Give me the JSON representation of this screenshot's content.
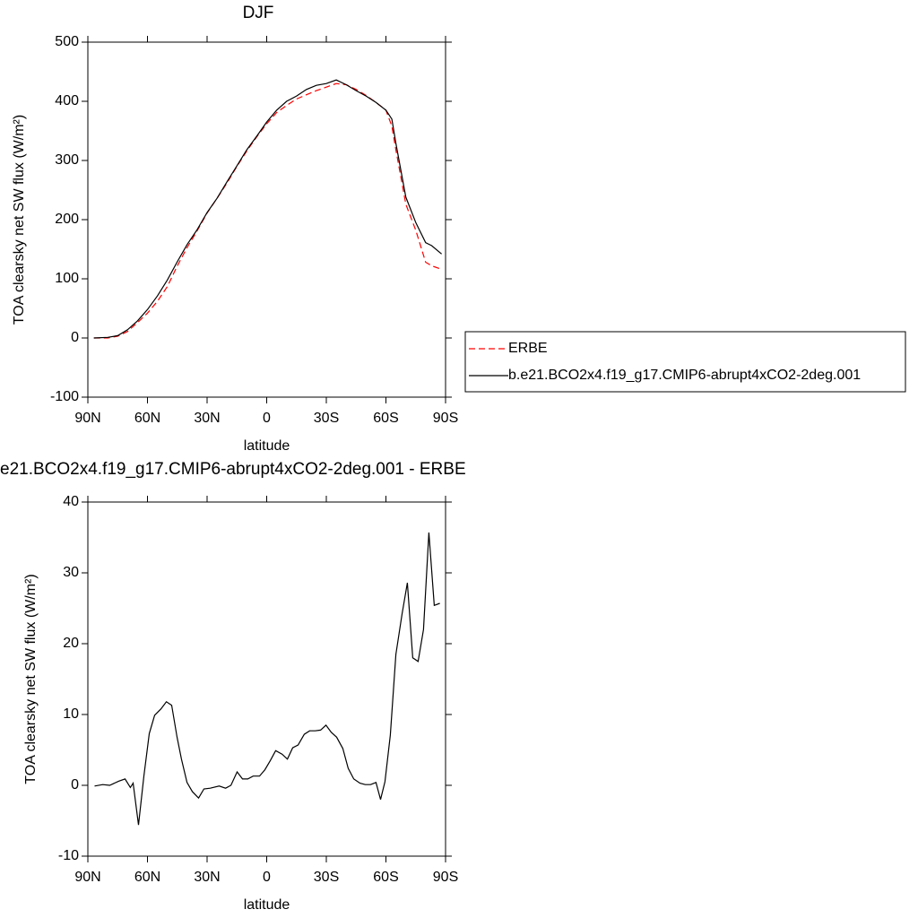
{
  "chart_data": [
    {
      "type": "line",
      "title": "DJF",
      "xlabel": "latitude",
      "ylabel": "TOA clearsky net SW flux (W/m²)",
      "x": [
        87,
        80,
        75,
        70,
        65,
        60,
        55,
        50,
        45,
        40,
        35,
        30,
        25,
        20,
        15,
        10,
        5,
        0,
        -5,
        -10,
        -15,
        -20,
        -25,
        -30,
        -35,
        -40,
        -45,
        -50,
        -55,
        -60,
        -63,
        -65,
        -70,
        -75,
        -80,
        -83,
        -88
      ],
      "series": [
        {
          "name": "ERBE",
          "color": "#ff0000",
          "style": "dashed",
          "values": [
            0,
            0,
            3,
            11,
            26,
            42,
            62,
            87,
            122,
            153,
            181,
            211,
            236,
            262,
            290,
            316,
            340,
            362,
            381,
            393,
            404,
            411,
            418,
            424,
            430,
            428,
            420,
            410,
            398,
            385,
            358,
            318,
            226,
            182,
            128,
            122,
            116
          ]
        },
        {
          "name": "b.e21.BCO2x4.f19_g17.CMIP6-abrupt4xCO2-2deg.001",
          "color": "#000000",
          "style": "solid",
          "values": [
            0,
            1,
            4,
            14,
            29,
            48,
            71,
            98,
            129,
            158,
            183,
            212,
            236,
            264,
            291,
            318,
            341,
            365,
            385,
            400,
            409,
            420,
            427,
            430,
            436,
            428,
            418,
            409,
            398,
            385,
            370,
            329,
            238,
            195,
            161,
            156,
            142
          ]
        }
      ],
      "xlim": [
        90,
        -90
      ],
      "xticks": [
        {
          "value": 90,
          "label": "90N"
        },
        {
          "value": 60,
          "label": "60N"
        },
        {
          "value": 30,
          "label": "30N"
        },
        0,
        {
          "value": -30,
          "label": "30S"
        },
        {
          "value": -60,
          "label": "60S"
        },
        {
          "value": -90,
          "label": "90S"
        }
      ],
      "ylim": [
        -100,
        500
      ],
      "yticks": [
        -100,
        0,
        100,
        200,
        300,
        400,
        500
      ]
    },
    {
      "type": "line",
      "title": "e21.BCO2x4.f19_g17.CMIP6-abrupt4xCO2-2deg.001 - ERBE",
      "xlabel": "latitude",
      "ylabel": "TOA clearsky net SW flux (W/m²)",
      "x": [
        86.6,
        82.5,
        79,
        74.4,
        71.3,
        68.6,
        67.2,
        64.5,
        61.8,
        59.1,
        56.4,
        53.2,
        50.5,
        47.8,
        45.1,
        42.9,
        40.1,
        37.4,
        34.3,
        31.6,
        28.4,
        23.9,
        20.7,
        18,
        14.9,
        12.2,
        9.5,
        6.8,
        3.6,
        0.9,
        -1.8,
        -4.5,
        -7.7,
        -10.4,
        -13.1,
        -15.8,
        -18.9,
        -21.6,
        -24.4,
        -27.1,
        -29.8,
        -32.5,
        -35.2,
        -38.3,
        -41,
        -43.8,
        -46.9,
        -49.6,
        -52.3,
        -55,
        -57.3,
        -59.5,
        -62.2,
        -65,
        -68.1,
        -70.8,
        -73.5,
        -76.2,
        -78.9,
        -81.6,
        -84.3,
        -87.1
      ],
      "values": [
        -0.1,
        0.1,
        0,
        0.6,
        0.9,
        -0.3,
        0.3,
        -5.6,
        1.3,
        7.3,
        9.9,
        10.8,
        11.8,
        11.3,
        6.8,
        3.7,
        0.4,
        -0.9,
        -1.8,
        -0.5,
        -0.4,
        -0.1,
        -0.4,
        0,
        1.9,
        0.9,
        0.9,
        1.3,
        1.3,
        2.2,
        3.5,
        4.9,
        4.4,
        3.7,
        5.3,
        5.7,
        7.2,
        7.7,
        7.7,
        7.8,
        8.5,
        7.5,
        6.8,
        5.2,
        2.4,
        0.9,
        0.3,
        0.1,
        0.1,
        0.4,
        -2,
        0.5,
        7.1,
        18.5,
        24.2,
        28.6,
        18,
        17.5,
        22,
        35.7,
        25.4,
        25.7
      ],
      "color": "#000000",
      "xlim": [
        90,
        -90
      ],
      "xticks": [
        {
          "value": 90,
          "label": "90N"
        },
        {
          "value": 60,
          "label": "60N"
        },
        {
          "value": 30,
          "label": "30N"
        },
        0,
        {
          "value": -30,
          "label": "30S"
        },
        {
          "value": -60,
          "label": "60S"
        },
        {
          "value": -90,
          "label": "90S"
        }
      ],
      "ylim": [
        -10,
        40
      ],
      "yticks": [
        -10,
        0,
        10,
        20,
        30,
        40
      ]
    }
  ]
}
